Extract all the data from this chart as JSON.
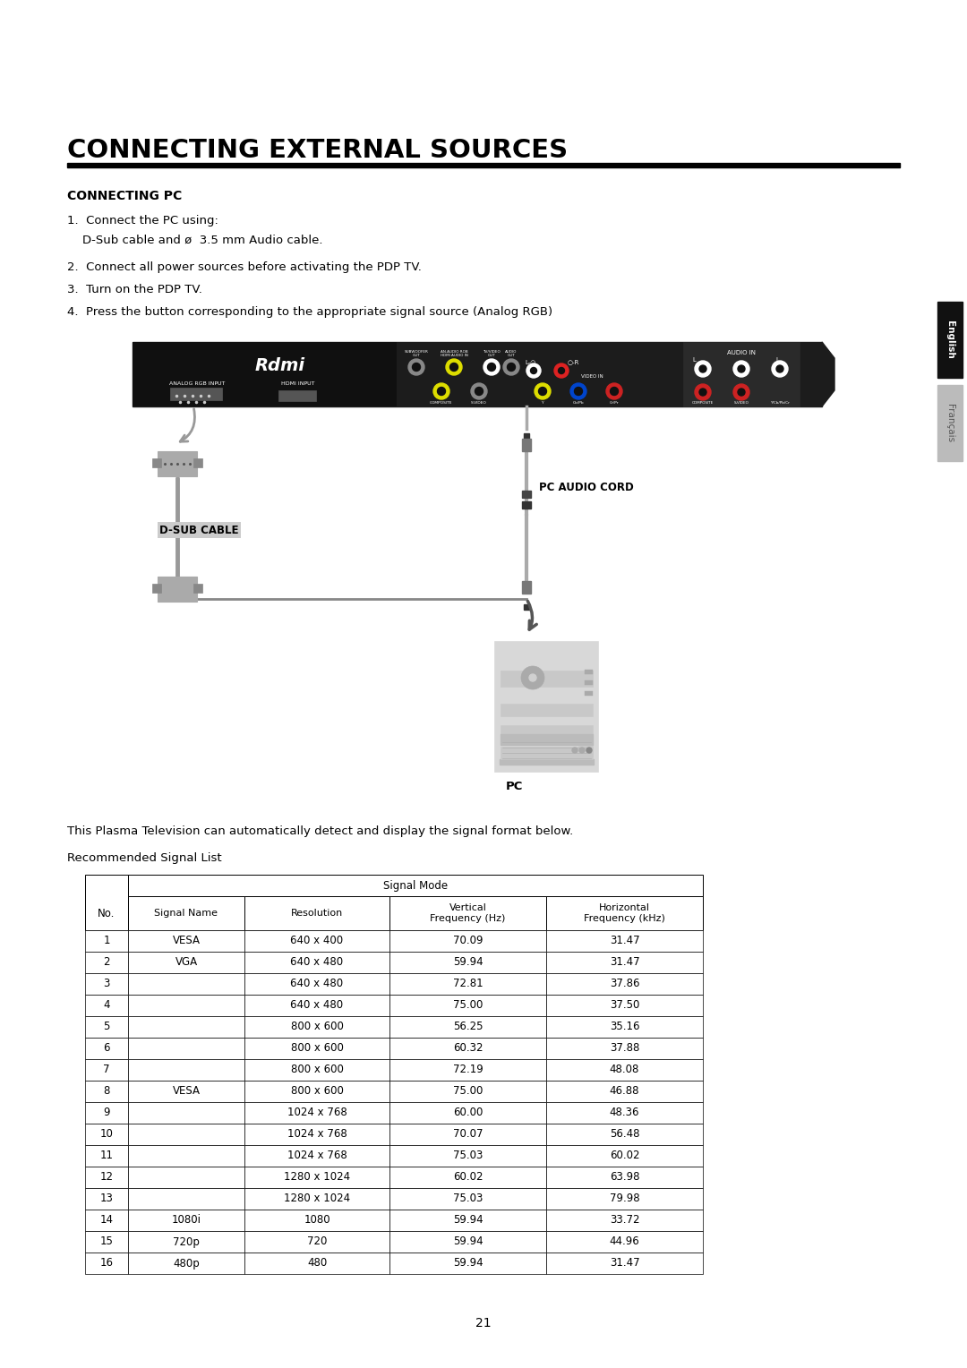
{
  "title": "CONNECTING EXTERNAL SOURCES",
  "section_title": "CONNECTING PC",
  "instructions": [
    "1.  Connect the PC using:",
    "    D-Sub cable and ø  3.5 mm Audio cable.",
    "2.  Connect all power sources before activating the PDP TV.",
    "3.  Turn on the PDP TV.",
    "4.  Press the button corresponding to the appropriate signal source (Analog RGB)"
  ],
  "caption_text": "This Plasma Television can automatically detect and display the signal format below.",
  "recommended_label": "Recommended Signal List",
  "table_data": [
    [
      "1",
      "VESA",
      "640 x 400",
      "70.09",
      "31.47"
    ],
    [
      "2",
      "VGA",
      "640 x 480",
      "59.94",
      "31.47"
    ],
    [
      "3",
      "",
      "640 x 480",
      "72.81",
      "37.86"
    ],
    [
      "4",
      "",
      "640 x 480",
      "75.00",
      "37.50"
    ],
    [
      "5",
      "",
      "800 x 600",
      "56.25",
      "35.16"
    ],
    [
      "6",
      "",
      "800 x 600",
      "60.32",
      "37.88"
    ],
    [
      "7",
      "",
      "800 x 600",
      "72.19",
      "48.08"
    ],
    [
      "8",
      "VESA",
      "800 x 600",
      "75.00",
      "46.88"
    ],
    [
      "9",
      "",
      "1024 x 768",
      "60.00",
      "48.36"
    ],
    [
      "10",
      "",
      "1024 x 768",
      "70.07",
      "56.48"
    ],
    [
      "11",
      "",
      "1024 x 768",
      "75.03",
      "60.02"
    ],
    [
      "12",
      "",
      "1280 x 1024",
      "60.02",
      "63.98"
    ],
    [
      "13",
      "",
      "1280 x 1024",
      "75.03",
      "79.98"
    ],
    [
      "14",
      "1080i",
      "1080",
      "59.94",
      "33.72"
    ],
    [
      "15",
      "720p",
      "720",
      "59.94",
      "44.96"
    ],
    [
      "16",
      "480p",
      "480",
      "59.94",
      "31.47"
    ]
  ],
  "page_number": "21",
  "tab_english": "English",
  "tab_francais": "Français",
  "dsub_label": "D-SUB CABLE",
  "audio_label": "PC AUDIO CORD",
  "pc_label": "PC",
  "background_color": "#ffffff",
  "tab_english_bg": "#111111",
  "tab_francais_bg": "#bbbbbb"
}
